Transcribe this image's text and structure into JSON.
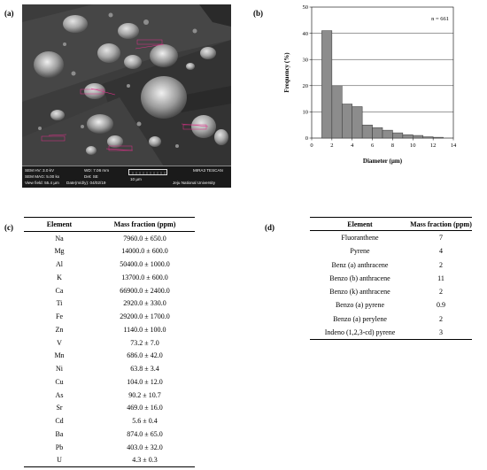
{
  "panel_labels": {
    "a": "(a)",
    "b": "(b)",
    "c": "(c)",
    "d": "(d)"
  },
  "sem": {
    "hv": "SEM HV: 3.0 kV",
    "wd": "WD: 7.06 mm",
    "brand": "MIRA3 TESCAN",
    "mag": "SEM MAG: 5.00 kx",
    "det": "Det: SE",
    "scale": "10 µm",
    "view": "View field: 55.4 µm",
    "date": "Date(m/d/y): 04/02/19",
    "institution": "Jeju National University"
  },
  "chart_data": {
    "type": "bar",
    "annotation": "n = 661",
    "xlabel": "Diameter (µm)",
    "ylabel": "Frequency (%)",
    "xlim": [
      0,
      14
    ],
    "ylim": [
      0,
      50
    ],
    "xticks": [
      0,
      2,
      4,
      6,
      8,
      10,
      12,
      14
    ],
    "yticks": [
      0,
      10,
      20,
      30,
      40,
      50
    ],
    "bin_width": 1,
    "bins": [
      {
        "x": 1,
        "value": 41
      },
      {
        "x": 2,
        "value": 20
      },
      {
        "x": 3,
        "value": 13
      },
      {
        "x": 4,
        "value": 12
      },
      {
        "x": 5,
        "value": 5
      },
      {
        "x": 6,
        "value": 4
      },
      {
        "x": 7,
        "value": 3
      },
      {
        "x": 8,
        "value": 2
      },
      {
        "x": 9,
        "value": 1.3
      },
      {
        "x": 10,
        "value": 1
      },
      {
        "x": 11,
        "value": 0.5
      },
      {
        "x": 12,
        "value": 0.3
      }
    ],
    "grid": "horizontal"
  },
  "table_c": {
    "headers": [
      "Element",
      "Mass fraction (ppm)"
    ],
    "rows": [
      [
        "Na",
        "7960.0 ± 650.0"
      ],
      [
        "Mg",
        "14000.0 ± 600.0"
      ],
      [
        "Al",
        "50400.0 ± 1000.0"
      ],
      [
        "K",
        "13700.0 ± 600.0"
      ],
      [
        "Ca",
        "66900.0 ± 2400.0"
      ],
      [
        "Ti",
        "2920.0 ± 330.0"
      ],
      [
        "Fe",
        "29200.0 ± 1700.0"
      ],
      [
        "Zn",
        "1140.0 ± 100.0"
      ],
      [
        "V",
        "73.2 ± 7.0"
      ],
      [
        "Mn",
        "686.0 ± 42.0"
      ],
      [
        "Ni",
        "63.8 ± 3.4"
      ],
      [
        "Cu",
        "104.0 ± 12.0"
      ],
      [
        "As",
        "90.2 ± 10.7"
      ],
      [
        "Sr",
        "469.0 ± 16.0"
      ],
      [
        "Cd",
        "5.6 ± 0.4"
      ],
      [
        "Ba",
        "874.0 ± 65.0"
      ],
      [
        "Pb",
        "403.0 ± 32.0"
      ],
      [
        "U",
        "4.3 ± 0.3"
      ]
    ]
  },
  "table_d": {
    "headers": [
      "Element",
      "Mass fraction (ppm)"
    ],
    "rows": [
      [
        "Fluoranthene",
        "7"
      ],
      [
        "Pyrene",
        "4"
      ],
      [
        "Benz (a) anthracene",
        "2"
      ],
      [
        "Benzo (b) anthracene",
        "11"
      ],
      [
        "Benzo (k) anthracene",
        "2"
      ],
      [
        "Benzo (a) pyrene",
        "0.9"
      ],
      [
        "Benzo (a) perylene",
        "2"
      ],
      [
        "Indeno (1,2,3-cd) pyrene",
        "3"
      ]
    ]
  }
}
